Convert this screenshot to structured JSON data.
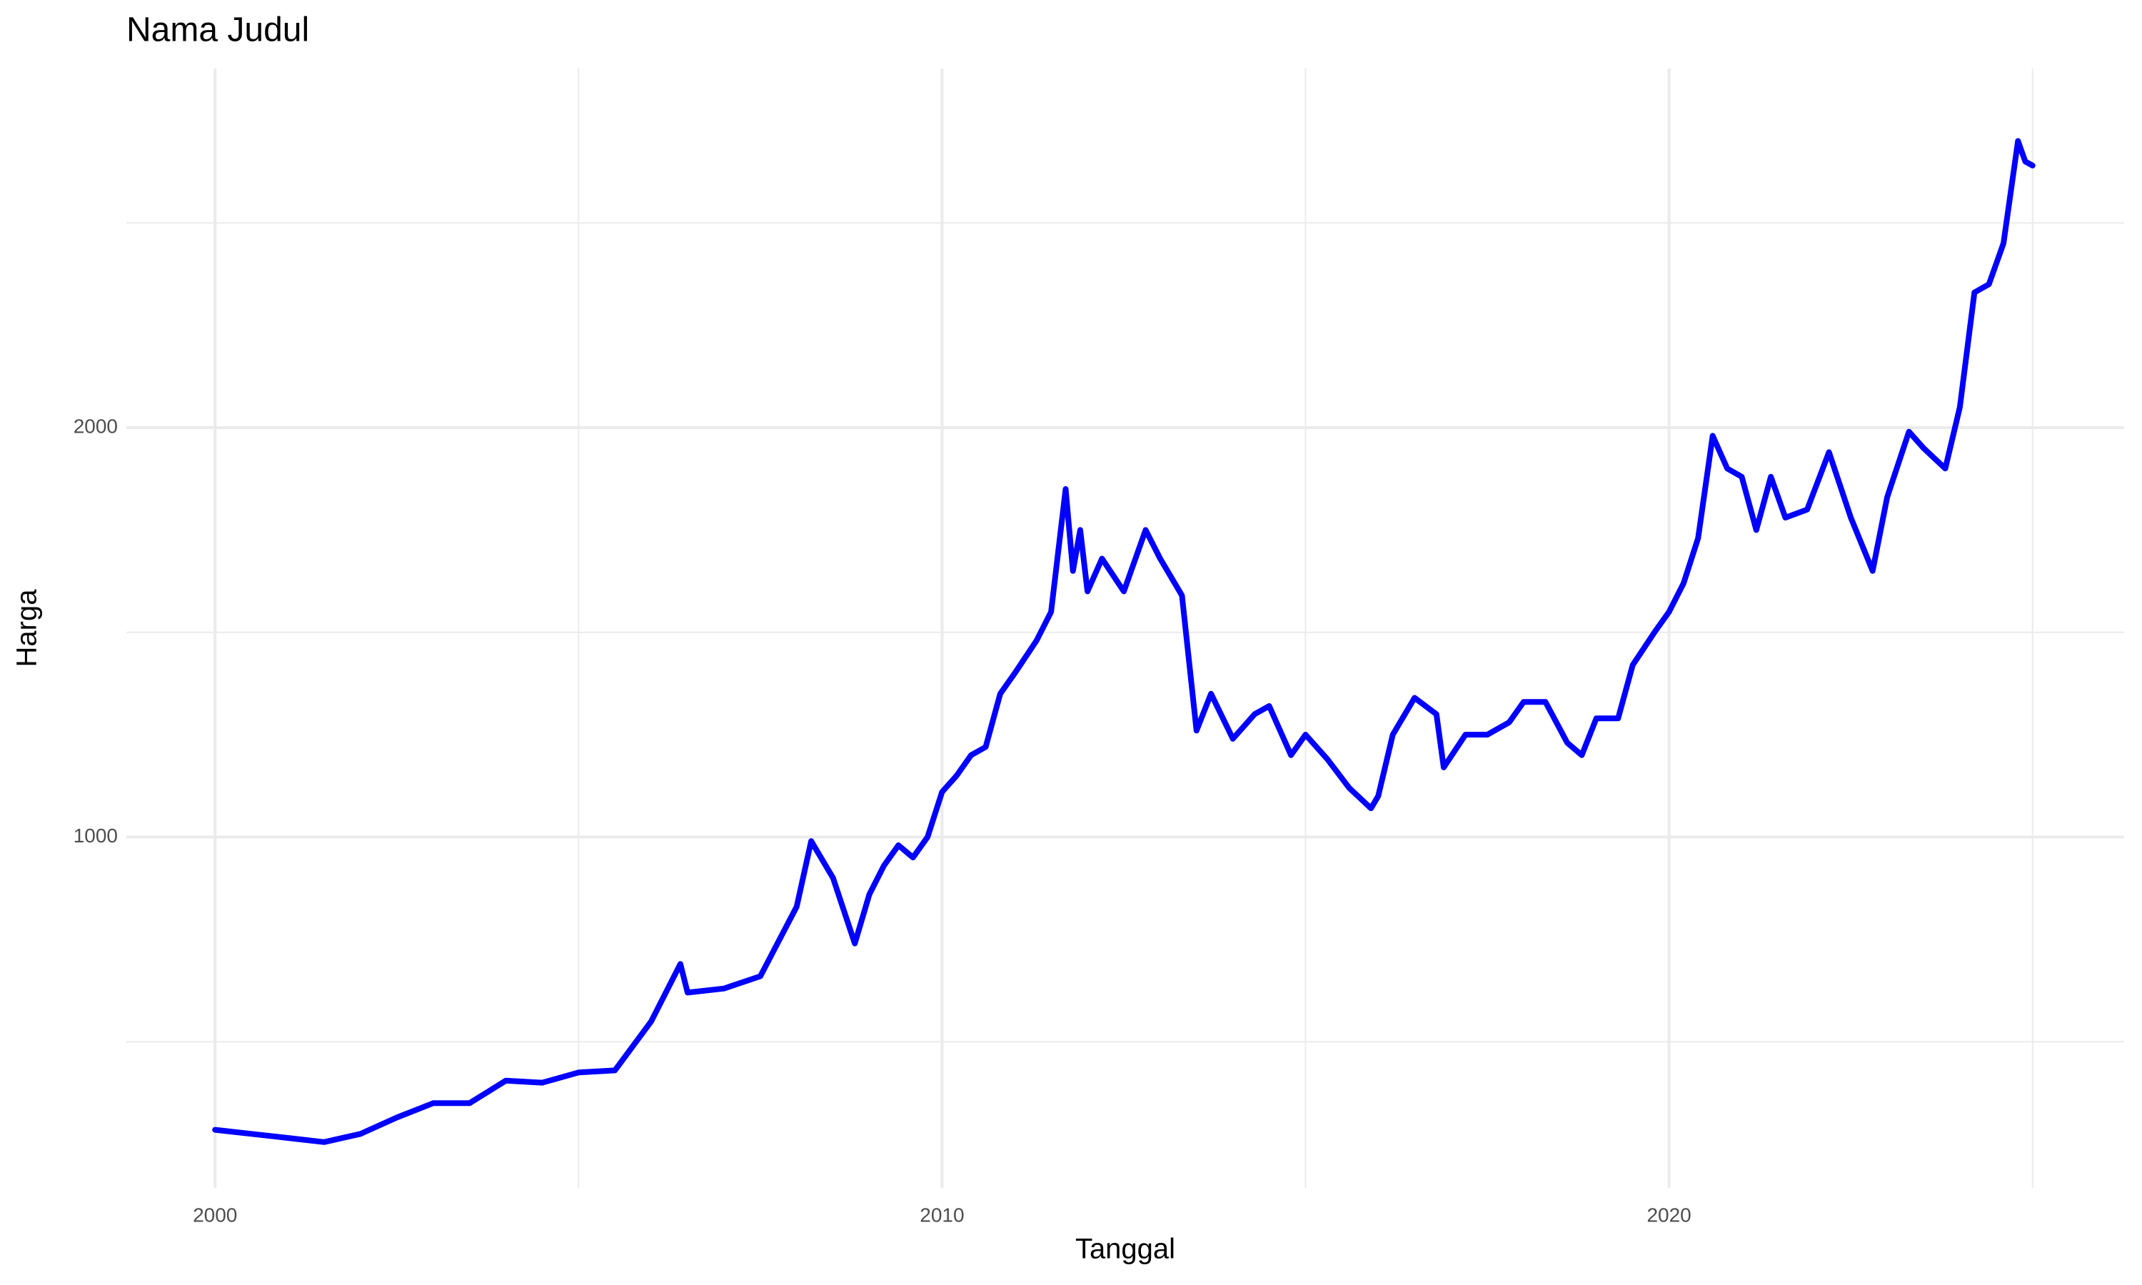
{
  "chart_data": {
    "type": "line",
    "title": "Nama Judul",
    "x_label": "Tanggal",
    "y_label": "Harga",
    "x": [
      2000.0,
      2000.5,
      2001.0,
      2001.5,
      2002.0,
      2002.5,
      2003.0,
      2003.5,
      2004.0,
      2004.5,
      2005.0,
      2005.5,
      2006.0,
      2006.4,
      2006.5,
      2007.0,
      2007.5,
      2008.0,
      2008.2,
      2008.5,
      2008.8,
      2009.0,
      2009.2,
      2009.4,
      2009.6,
      2009.8,
      2010.0,
      2010.2,
      2010.4,
      2010.6,
      2010.8,
      2011.0,
      2011.3,
      2011.5,
      2011.7,
      2011.8,
      2011.9,
      2012.0,
      2012.2,
      2012.5,
      2012.8,
      2013.0,
      2013.3,
      2013.5,
      2013.7,
      2014.0,
      2014.3,
      2014.5,
      2014.8,
      2015.0,
      2015.3,
      2015.6,
      2015.9,
      2016.0,
      2016.2,
      2016.5,
      2016.8,
      2016.9,
      2017.2,
      2017.5,
      2017.8,
      2018.0,
      2018.3,
      2018.6,
      2018.8,
      2019.0,
      2019.3,
      2019.5,
      2019.8,
      2020.0,
      2020.2,
      2020.4,
      2020.6,
      2020.8,
      2021.0,
      2021.2,
      2021.4,
      2021.6,
      2021.9,
      2022.2,
      2022.5,
      2022.8,
      2023.0,
      2023.3,
      2023.5,
      2023.8,
      2024.0,
      2024.2,
      2024.4,
      2024.6,
      2024.8,
      2024.9,
      2025.0
    ],
    "values": [
      285,
      275,
      265,
      255,
      275,
      315,
      350,
      350,
      405,
      400,
      425,
      430,
      550,
      690,
      620,
      630,
      660,
      830,
      990,
      900,
      740,
      860,
      930,
      980,
      950,
      1000,
      1110,
      1150,
      1200,
      1220,
      1350,
      1400,
      1480,
      1550,
      1850,
      1650,
      1750,
      1600,
      1680,
      1600,
      1750,
      1680,
      1590,
      1260,
      1350,
      1240,
      1300,
      1320,
      1200,
      1250,
      1190,
      1120,
      1070,
      1100,
      1250,
      1340,
      1300,
      1170,
      1250,
      1250,
      1280,
      1330,
      1330,
      1230,
      1200,
      1290,
      1290,
      1420,
      1500,
      1550,
      1620,
      1730,
      1980,
      1900,
      1880,
      1750,
      1880,
      1780,
      1800,
      1940,
      1780,
      1650,
      1830,
      1990,
      1950,
      1900,
      2050,
      2330,
      2350,
      2450,
      2700,
      2650,
      2640
    ],
    "color": "#0000ff",
    "xlim": [
      1998.78,
      2026.26
    ],
    "xticks": [
      2000,
      2010,
      2020
    ],
    "x_minor_grid": [
      2005,
      2015,
      2025
    ],
    "ylim": [
      143,
      2877
    ],
    "yticks": [
      1000,
      2000
    ],
    "y_minor_grid": [
      500,
      1500,
      2500
    ],
    "grid": true
  }
}
